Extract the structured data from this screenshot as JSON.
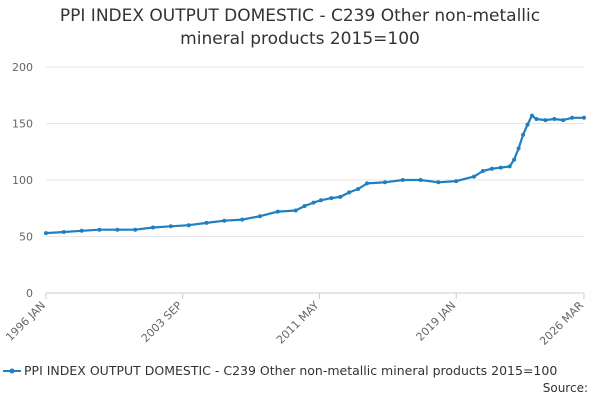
{
  "title_line1": "PPI INDEX OUTPUT DOMESTIC - C239 Other non-metallic",
  "title_line2": "mineral products 2015=100",
  "source_label": "Source:",
  "colors": {
    "series": "#1f7fc0",
    "grid": "#e6e6e6",
    "axis": "#cccccc",
    "text": "#666666"
  },
  "chart_data": {
    "type": "line",
    "title": "PPI INDEX OUTPUT DOMESTIC - C239 Other non-metallic mineral products 2015=100",
    "xlabel": "",
    "ylabel": "",
    "ylim": [
      0,
      200
    ],
    "yticks": [
      0,
      50,
      100,
      150,
      200
    ],
    "xlim": [
      "1996-01",
      "2026-03"
    ],
    "xticks": [
      {
        "date": "1996-01",
        "label": "1996 JAN"
      },
      {
        "date": "2003-09",
        "label": "2003 SEP"
      },
      {
        "date": "2011-05",
        "label": "2011 MAY"
      },
      {
        "date": "2019-01",
        "label": "2019 JAN"
      },
      {
        "date": "2026-03",
        "label": "2026 MAR"
      }
    ],
    "grid": true,
    "legend_position": "bottom",
    "series": [
      {
        "name": "PPI INDEX OUTPUT DOMESTIC - C239 Other non-metallic mineral products 2015=100",
        "points": [
          [
            "1996-01",
            53
          ],
          [
            "1997-01",
            54
          ],
          [
            "1998-01",
            55
          ],
          [
            "1999-01",
            56
          ],
          [
            "2000-01",
            56
          ],
          [
            "2001-01",
            56
          ],
          [
            "2002-01",
            58
          ],
          [
            "2003-01",
            59
          ],
          [
            "2004-01",
            60
          ],
          [
            "2005-01",
            62
          ],
          [
            "2006-01",
            64
          ],
          [
            "2007-01",
            65
          ],
          [
            "2008-01",
            68
          ],
          [
            "2009-01",
            72
          ],
          [
            "2010-01",
            73
          ],
          [
            "2010-07",
            77
          ],
          [
            "2011-01",
            80
          ],
          [
            "2011-06",
            82
          ],
          [
            "2012-01",
            84
          ],
          [
            "2012-07",
            85
          ],
          [
            "2013-01",
            89
          ],
          [
            "2013-07",
            92
          ],
          [
            "2014-01",
            97
          ],
          [
            "2015-01",
            98
          ],
          [
            "2016-01",
            100
          ],
          [
            "2017-01",
            100
          ],
          [
            "2018-01",
            98
          ],
          [
            "2019-01",
            99
          ],
          [
            "2020-01",
            103
          ],
          [
            "2020-07",
            108
          ],
          [
            "2021-01",
            110
          ],
          [
            "2021-07",
            111
          ],
          [
            "2022-01",
            112
          ],
          [
            "2022-04",
            118
          ],
          [
            "2022-07",
            128
          ],
          [
            "2022-10",
            140
          ],
          [
            "2023-01",
            149
          ],
          [
            "2023-04",
            157
          ],
          [
            "2023-07",
            154
          ],
          [
            "2024-01",
            153
          ],
          [
            "2024-07",
            154
          ],
          [
            "2025-01",
            153
          ],
          [
            "2025-07",
            155
          ],
          [
            "2026-03",
            155
          ]
        ]
      }
    ]
  }
}
